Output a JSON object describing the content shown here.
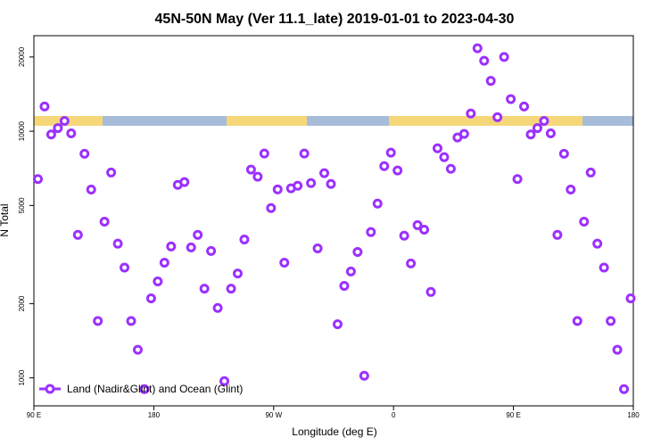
{
  "chart_data": {
    "type": "scatter",
    "title": "45N-50N May (Ver 11.1_late)   2019-01-01 to 2023-04-30",
    "xlabel": "Longitude (deg E)",
    "ylabel": "N Total",
    "xlim": [
      90,
      540
    ],
    "xticks": [
      {
        "value": 90,
        "label": "90 E"
      },
      180,
      {
        "value": 270,
        "label": "90 W"
      },
      {
        "value": 360,
        "label": "0"
      },
      {
        "value": 450,
        "label": "90 E"
      },
      {
        "value": 540,
        "label": "180"
      }
    ],
    "ylim": [
      770,
      24400
    ],
    "yticks": [
      1000,
      2000,
      5000,
      10000,
      20000
    ],
    "log_y": true,
    "legend": "bottom-left",
    "x": [
      93,
      98,
      103,
      108,
      113,
      118,
      123,
      128,
      133,
      138,
      143,
      148,
      153,
      158,
      163,
      168,
      173,
      178,
      183,
      188,
      193,
      198,
      203,
      208,
      213,
      218,
      223,
      228,
      233,
      238,
      243,
      248,
      253,
      258,
      263,
      268,
      273,
      278,
      283,
      288,
      293,
      298,
      303,
      308,
      313,
      318,
      323,
      328,
      333,
      338,
      343,
      348,
      353,
      358,
      363,
      368,
      373,
      378,
      383,
      388,
      393,
      398,
      403,
      408,
      413,
      418,
      423,
      428,
      433,
      438,
      443,
      448,
      453,
      458,
      463,
      468,
      473,
      478,
      483,
      488,
      493,
      498,
      503,
      508,
      513,
      518,
      523,
      528,
      533,
      538
    ],
    "series": [
      {
        "name": "Land (Nadir&Glint) and Ocean (Glint)",
        "color": "#9b30ff",
        "values": [
          6400,
          12600,
          9700,
          10300,
          11000,
          9800,
          3800,
          8100,
          5800,
          1700,
          4300,
          6800,
          3500,
          2800,
          1700,
          1300,
          900,
          2100,
          2460,
          2930,
          3410,
          6060,
          6220,
          3380,
          3800,
          2300,
          3270,
          1920,
          970,
          2300,
          2650,
          3640,
          6990,
          6540,
          8120,
          4880,
          5810,
          2930,
          5870,
          6010,
          8120,
          6160,
          3350,
          6760,
          6110,
          1650,
          2360,
          2700,
          3240,
          1020,
          3900,
          5090,
          7220,
          8190,
          6930,
          3770,
          2910,
          4160,
          3990,
          2230,
          8530,
          7850,
          7040,
          9430,
          9750,
          11800,
          21700,
          19300,
          16000,
          11400,
          20000,
          13500,
          6400,
          12600,
          9700,
          10300,
          11000,
          9800,
          3800,
          8100,
          5800,
          1700,
          4300,
          6800,
          3500,
          2800,
          1700,
          1300,
          900,
          2100
        ]
      }
    ]
  }
}
